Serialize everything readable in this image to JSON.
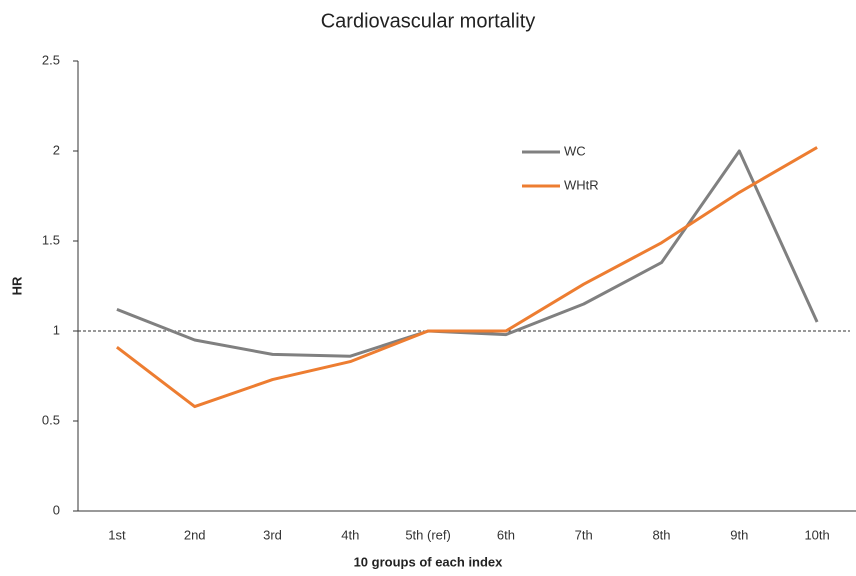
{
  "chart_data": {
    "type": "line",
    "title": "Cardiovascular mortality",
    "x_label": "10 groups of each index",
    "y_label": "HR",
    "categories": [
      "1st",
      "2nd",
      "3rd",
      "4th",
      "5th (ref)",
      "6th",
      "7th",
      "8th",
      "9th",
      "10th"
    ],
    "series": [
      {
        "name": "WC",
        "color": "#808080",
        "values": [
          1.12,
          0.95,
          0.87,
          0.86,
          1.0,
          0.98,
          1.15,
          1.38,
          2.0,
          1.05
        ]
      },
      {
        "name": "WHtR",
        "color": "#ed7d31",
        "values": [
          0.91,
          0.58,
          0.73,
          0.83,
          1.0,
          1.0,
          1.26,
          1.49,
          1.77,
          2.02
        ]
      }
    ],
    "ylim": [
      0,
      2.5
    ],
    "yticks": [
      0,
      0.5,
      1,
      1.5,
      2,
      2.5
    ],
    "grid": false,
    "reference_line": 1,
    "legend": "upper right"
  }
}
